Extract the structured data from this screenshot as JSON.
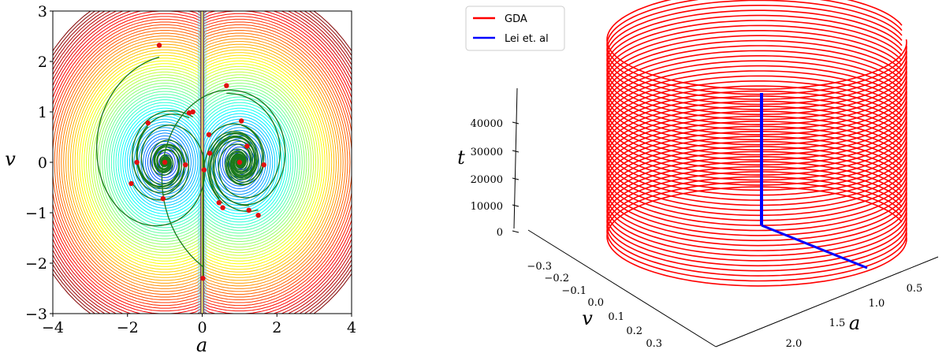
{
  "chart_data": [
    {
      "type": "contour",
      "xlabel": "a",
      "ylabel": "v",
      "xlim": [
        -4,
        4
      ],
      "ylim": [
        -3,
        3
      ],
      "x_ticks": [
        "−4",
        "−2",
        "0",
        "2",
        "4"
      ],
      "y_ticks": [
        "−3",
        "−2",
        "−1",
        "0",
        "1",
        "2",
        "3"
      ],
      "colormap": "jet",
      "trajectory_color": "#1a7a1a",
      "marker_color": "#e01010",
      "points": [
        {
          "a": -1.15,
          "v": 2.32
        },
        {
          "a": 0.65,
          "v": 1.52
        },
        {
          "a": -0.35,
          "v": 0.98
        },
        {
          "a": -0.25,
          "v": 1.0
        },
        {
          "a": -1.45,
          "v": 0.78
        },
        {
          "a": 1.05,
          "v": 0.82
        },
        {
          "a": 0.18,
          "v": 0.55
        },
        {
          "a": 1.2,
          "v": 0.32
        },
        {
          "a": 0.2,
          "v": 0.18
        },
        {
          "a": -1.75,
          "v": 0.0
        },
        {
          "a": -0.45,
          "v": -0.05
        },
        {
          "a": -1.0,
          "v": 0.0
        },
        {
          "a": 1.0,
          "v": 0.0
        },
        {
          "a": 1.65,
          "v": -0.05
        },
        {
          "a": 0.05,
          "v": -0.15
        },
        {
          "a": -1.9,
          "v": -0.42
        },
        {
          "a": -1.05,
          "v": -0.72
        },
        {
          "a": 0.45,
          "v": -0.8
        },
        {
          "a": 0.55,
          "v": -0.9
        },
        {
          "a": 1.25,
          "v": -0.95
        },
        {
          "a": 1.5,
          "v": -1.05
        },
        {
          "a": 0.02,
          "v": -2.3
        }
      ]
    },
    {
      "type": "line3d",
      "xlabel": "a",
      "ylabel": "v",
      "zlabel": "t",
      "a_ticks": [
        "0.5",
        "1.0",
        "1.5",
        "2.0"
      ],
      "v_ticks": [
        "−0.3",
        "−0.2",
        "−0.1",
        "0.0",
        "0.1",
        "0.2",
        "0.3"
      ],
      "t_ticks": [
        "0",
        "10000",
        "20000",
        "30000",
        "40000"
      ],
      "legend_position": "top-left",
      "series": [
        {
          "name": "GDA",
          "color": "#ff0000"
        },
        {
          "name": "Lei et. al",
          "color": "#0000ff"
        }
      ]
    }
  ]
}
